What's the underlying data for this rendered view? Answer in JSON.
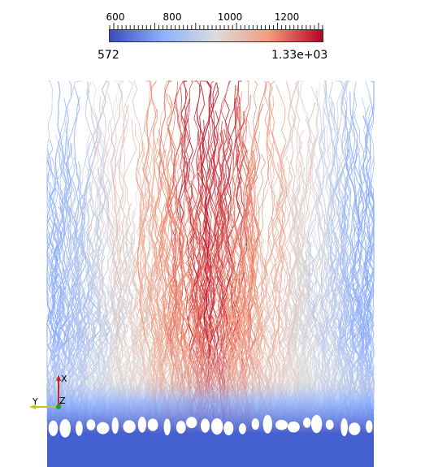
{
  "colorbar": {
    "ticks": [
      "600",
      "800",
      "1000",
      "1200"
    ],
    "min_label": "572",
    "max_label": "1.33e+03",
    "colors": [
      "#3b4cc0",
      "#8db0fe",
      "#dddddd",
      "#f49a7b",
      "#b40426"
    ]
  },
  "axes": {
    "x_label": "X",
    "y_label": "Y",
    "z_label": "Z"
  },
  "image": {
    "description_colors": {
      "cold": "#3b4cc0",
      "mid": "#dddddd",
      "hot": "#b40426"
    }
  }
}
